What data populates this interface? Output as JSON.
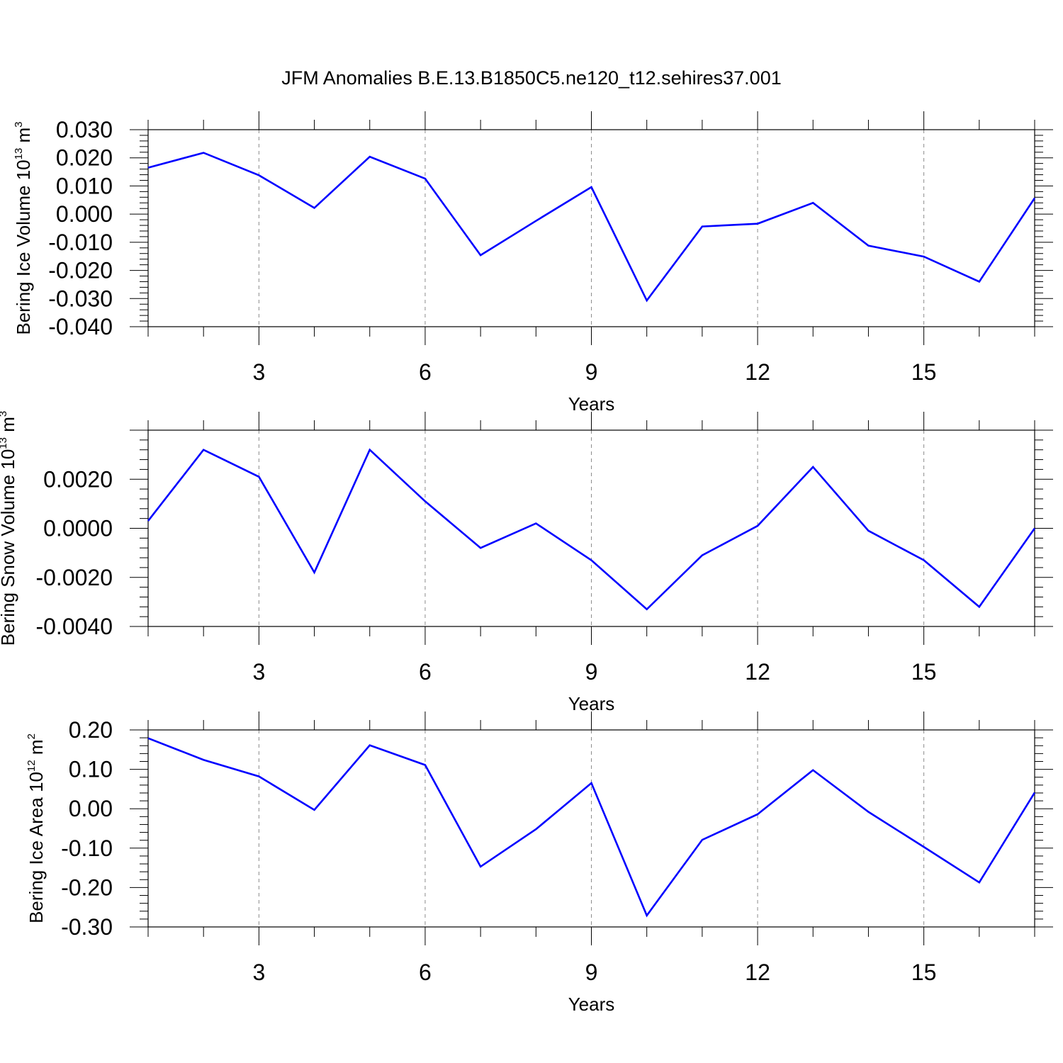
{
  "title": "JFM Anomalies B.E.13.B1850C5.ne120_t12.sehires37.001",
  "line_color": "#0000ff",
  "grid_color": "#8c8c8c",
  "chart_data": [
    {
      "type": "line",
      "xlabel": "Years",
      "ylabel": {
        "main": "Bering Ice Volume 10",
        "exp": "13",
        "unit": " m",
        "unit_exp": "3"
      },
      "xlim": [
        1,
        17
      ],
      "ylim": [
        -0.04,
        0.03
      ],
      "xticks": [
        3,
        6,
        9,
        12,
        15
      ],
      "xtick_labels": [
        "3",
        "6",
        "9",
        "12",
        "15"
      ],
      "yticks": [
        -0.04,
        -0.03,
        -0.02,
        -0.01,
        0.0,
        0.01,
        0.02,
        0.03
      ],
      "ytick_labels": [
        "-0.040",
        "-0.030",
        "-0.020",
        "-0.010",
        "0.000",
        "0.010",
        "0.020",
        "0.030"
      ],
      "grid": "vertical dashed at major x ticks",
      "series": [
        {
          "x": [
            1,
            2,
            3,
            4,
            5,
            6,
            7,
            8,
            9,
            10,
            11,
            12,
            13,
            14,
            15,
            16,
            17
          ],
          "values": [
            0.0165,
            0.0218,
            0.0138,
            0.0022,
            0.0204,
            0.0126,
            -0.0146,
            -0.0024,
            0.0096,
            -0.0307,
            -0.0044,
            -0.0034,
            0.004,
            -0.0112,
            -0.0151,
            -0.024,
            0.0057
          ]
        }
      ]
    },
    {
      "type": "line",
      "xlabel": "Years",
      "ylabel": {
        "main": "Bering Snow Volume 10",
        "exp": "13",
        "unit": " m",
        "unit_exp": "3"
      },
      "xlim": [
        1,
        17
      ],
      "ylim": [
        -0.004,
        0.004
      ],
      "xticks": [
        3,
        6,
        9,
        12,
        15
      ],
      "xtick_labels": [
        "3",
        "6",
        "9",
        "12",
        "15"
      ],
      "yticks": [
        -0.004,
        -0.002,
        0.0,
        0.002
      ],
      "ytick_labels": [
        "-0.0040",
        "-0.0020",
        "0.0000",
        "0.0020"
      ],
      "grid": "vertical dashed at major x ticks",
      "series": [
        {
          "x": [
            1,
            2,
            3,
            4,
            5,
            6,
            7,
            8,
            9,
            10,
            11,
            12,
            13,
            14,
            15,
            16,
            17
          ],
          "values": [
            0.0003,
            0.0032,
            0.0021,
            -0.0018,
            0.0032,
            0.0011,
            -0.0008,
            0.0002,
            -0.0013,
            -0.0033,
            -0.0011,
            0.0001,
            0.0025,
            -0.0001,
            -0.0013,
            -0.0032,
            0.0
          ]
        }
      ]
    },
    {
      "type": "line",
      "xlabel": "Years",
      "ylabel": {
        "main": "Bering Ice Area 10",
        "exp": "12",
        "unit": " m",
        "unit_exp": "2"
      },
      "xlim": [
        1,
        17
      ],
      "ylim": [
        -0.3,
        0.2
      ],
      "xticks": [
        3,
        6,
        9,
        12,
        15
      ],
      "xtick_labels": [
        "3",
        "6",
        "9",
        "12",
        "15"
      ],
      "yticks": [
        -0.3,
        -0.2,
        -0.1,
        0.0,
        0.1,
        0.2
      ],
      "ytick_labels": [
        "-0.30",
        "-0.20",
        "-0.10",
        "0.00",
        "0.10",
        "0.20"
      ],
      "grid": "vertical dashed at major x ticks",
      "series": [
        {
          "x": [
            1,
            2,
            3,
            4,
            5,
            6,
            7,
            8,
            9,
            10,
            11,
            12,
            13,
            14,
            15,
            16,
            17
          ],
          "values": [
            0.179,
            0.124,
            0.082,
            -0.003,
            0.161,
            0.111,
            -0.147,
            -0.052,
            0.065,
            -0.271,
            -0.079,
            -0.014,
            0.098,
            -0.008,
            -0.097,
            -0.187,
            0.041
          ]
        }
      ]
    }
  ]
}
